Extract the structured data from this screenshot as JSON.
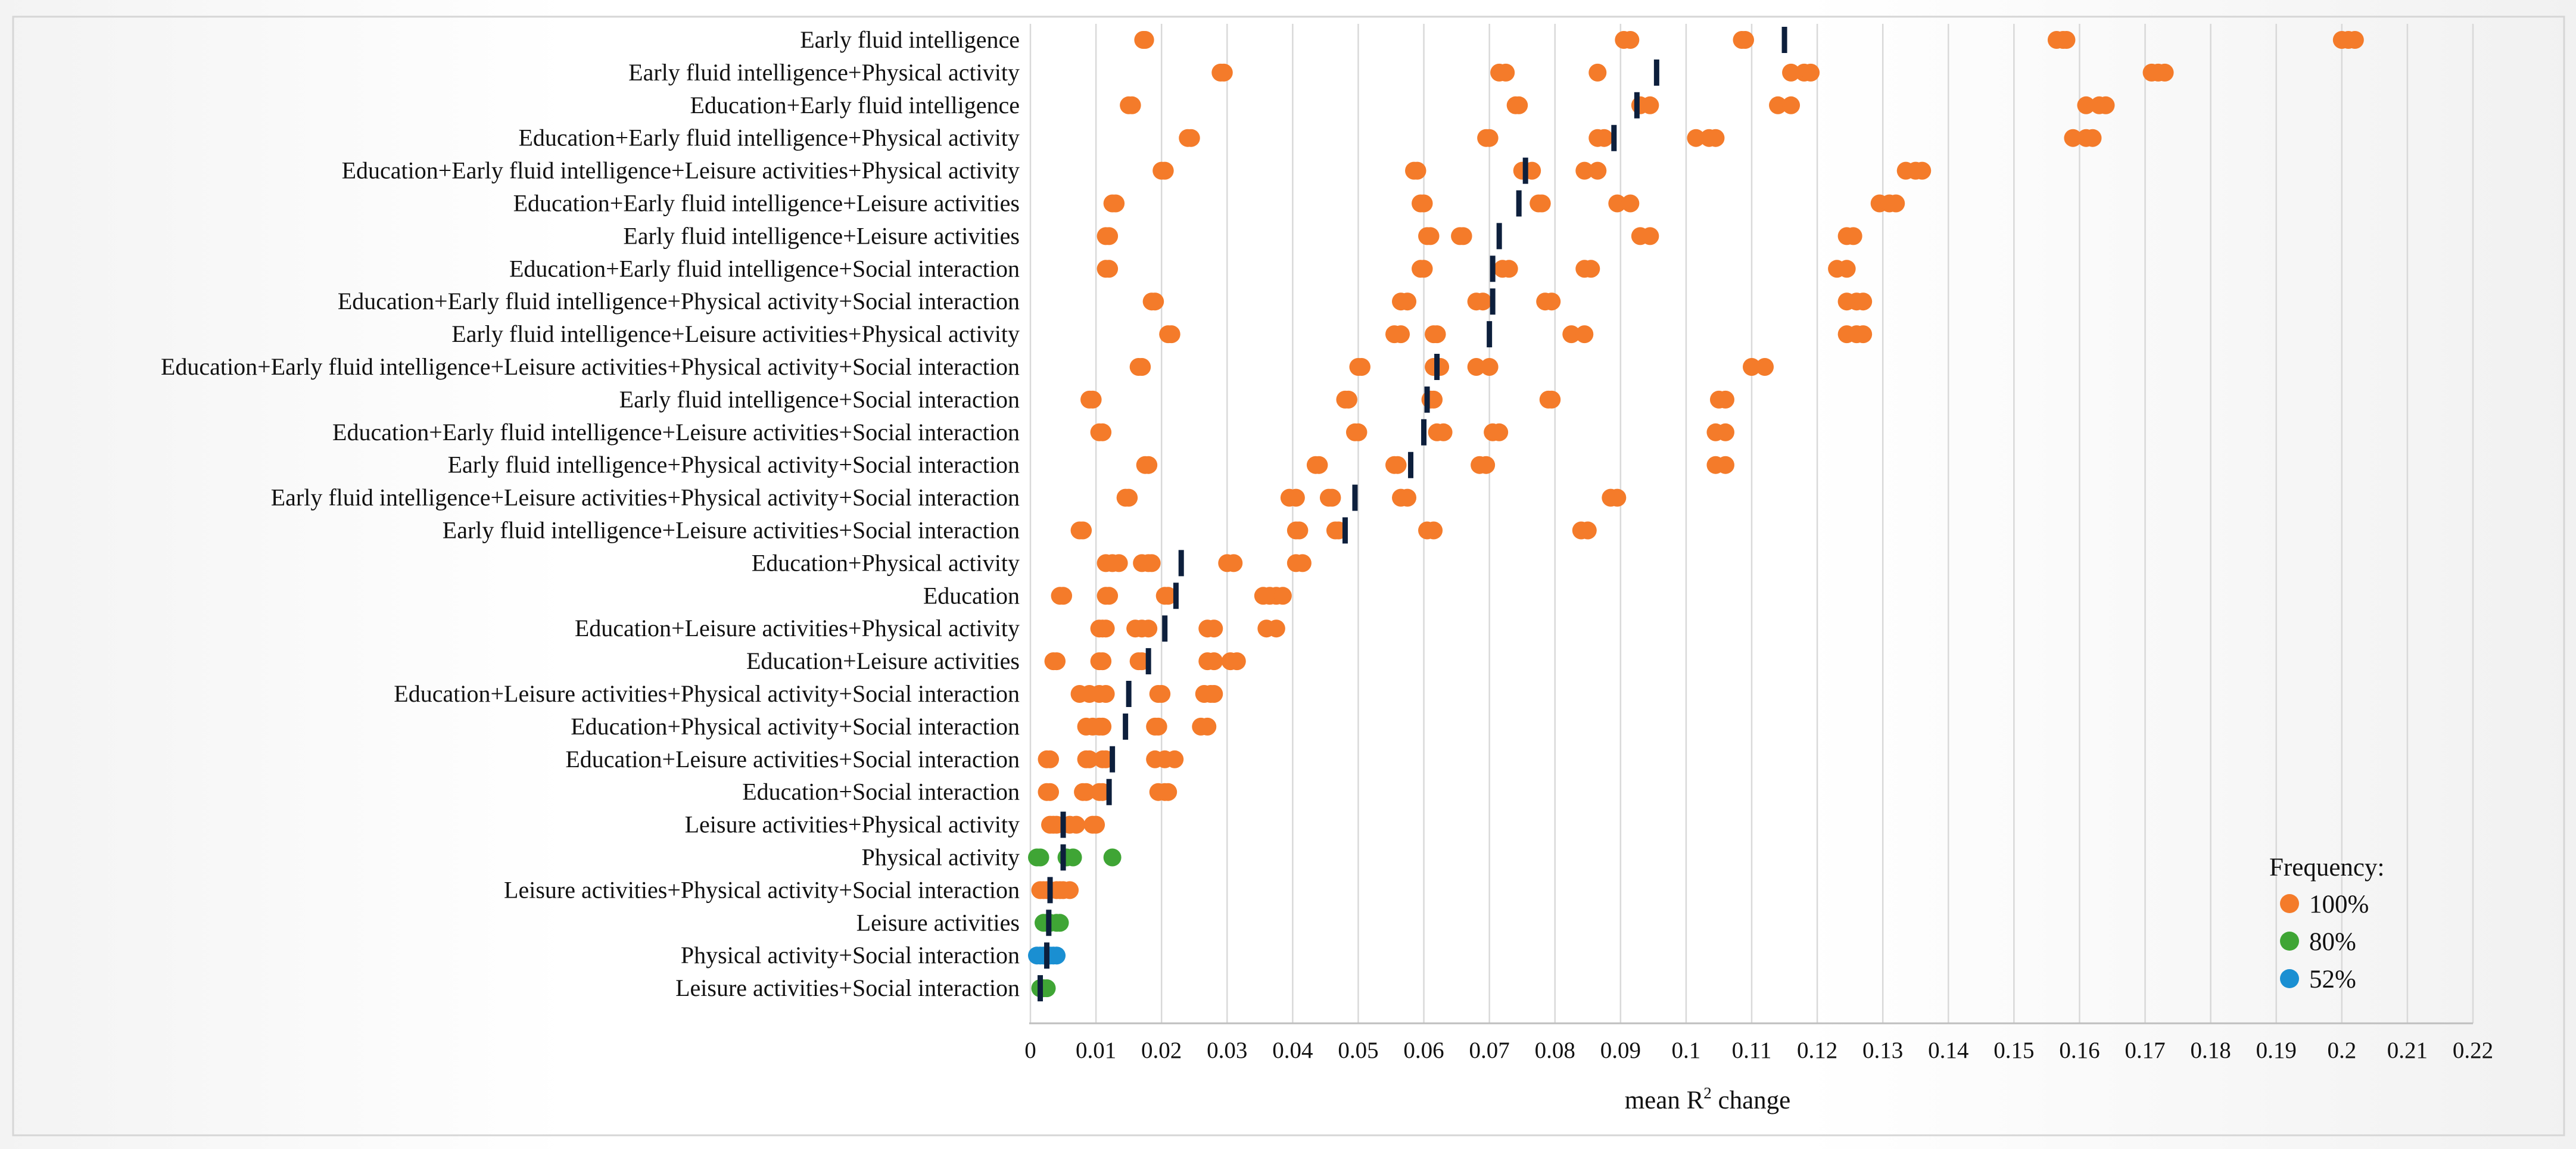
{
  "chart_data": {
    "type": "scatter",
    "title": "",
    "xlabel": "mean R",
    "xlabel_superscript": "2",
    "xlabel_suffix": " change",
    "ylabel": "",
    "xlim": [
      0,
      0.22
    ],
    "xticks": [
      0,
      0.01,
      0.02,
      0.03,
      0.04,
      0.05,
      0.06,
      0.07,
      0.08,
      0.09,
      0.1,
      0.11,
      0.12,
      0.13,
      0.14,
      0.15,
      0.16,
      0.17,
      0.18,
      0.19,
      0.2,
      0.21,
      0.22
    ],
    "xtick_labels": [
      "0",
      "0.01",
      "0.02",
      "0.03",
      "0.04",
      "0.05",
      "0.06",
      "0.07",
      "0.08",
      "0.09",
      "0.1",
      "0.11",
      "0.12",
      "0.13",
      "0.14",
      "0.15",
      "0.16",
      "0.17",
      "0.18",
      "0.19",
      "0.2",
      "0.21",
      "0.22"
    ],
    "grid": true,
    "colors": {
      "100%": "#f47b2a",
      "80%": "#3fa535",
      "52%": "#1a8fd2",
      "mean": "#0d1f3c"
    },
    "legend": {
      "title": "Frequency:",
      "position": "bottom-right",
      "entries": [
        {
          "label": "100%",
          "color": "#f47b2a"
        },
        {
          "label": "80%",
          "color": "#3fa535"
        },
        {
          "label": "52%",
          "color": "#1a8fd2"
        }
      ]
    },
    "rows": [
      {
        "label": "Early fluid intelligence",
        "frequency": "100%",
        "mean": 0.115,
        "points": [
          0.0172,
          0.0175,
          0.0905,
          0.0915,
          0.1085,
          0.109,
          0.1565,
          0.1575,
          0.158,
          0.2,
          0.201,
          0.202
        ]
      },
      {
        "label": "Early fluid intelligence+Physical activity",
        "frequency": "100%",
        "mean": 0.0955,
        "points": [
          0.029,
          0.0295,
          0.0715,
          0.0725,
          0.0865,
          0.116,
          0.118,
          0.119,
          0.171,
          0.172,
          0.173
        ]
      },
      {
        "label": "Education+Early fluid intelligence",
        "frequency": "100%",
        "mean": 0.0925,
        "points": [
          0.015,
          0.0155,
          0.074,
          0.0745,
          0.093,
          0.0945,
          0.114,
          0.116,
          0.161,
          0.163,
          0.164
        ]
      },
      {
        "label": "Education+Early fluid intelligence+Physical activity",
        "frequency": "100%",
        "mean": 0.089,
        "points": [
          0.024,
          0.0245,
          0.0695,
          0.07,
          0.0865,
          0.0875,
          0.1015,
          0.1035,
          0.1045,
          0.159,
          0.161,
          0.162
        ]
      },
      {
        "label": "Education+Early fluid intelligence+Leisure activities+Physical activity",
        "frequency": "100%",
        "mean": 0.0755,
        "points": [
          0.02,
          0.0205,
          0.0585,
          0.059,
          0.075,
          0.0765,
          0.0845,
          0.0865,
          0.1335,
          0.135,
          0.136
        ]
      },
      {
        "label": "Education+Early fluid intelligence+Leisure activities",
        "frequency": "100%",
        "mean": 0.0745,
        "points": [
          0.0125,
          0.013,
          0.0595,
          0.06,
          0.0775,
          0.078,
          0.0895,
          0.0915,
          0.1295,
          0.131,
          0.132
        ]
      },
      {
        "label": "Early fluid intelligence+Leisure activities",
        "frequency": "100%",
        "mean": 0.0715,
        "points": [
          0.0115,
          0.012,
          0.0605,
          0.061,
          0.0655,
          0.066,
          0.093,
          0.0945,
          0.1245,
          0.1255
        ]
      },
      {
        "label": "Education+Early fluid intelligence+Social interaction",
        "frequency": "100%",
        "mean": 0.0705,
        "points": [
          0.0115,
          0.012,
          0.0595,
          0.06,
          0.072,
          0.073,
          0.0845,
          0.0855,
          0.123,
          0.1245
        ]
      },
      {
        "label": "Education+Early fluid intelligence+Physical activity+Social interaction",
        "frequency": "100%",
        "mean": 0.0705,
        "points": [
          0.0185,
          0.019,
          0.0565,
          0.0575,
          0.068,
          0.069,
          0.0785,
          0.0795,
          0.1245,
          0.126,
          0.127
        ]
      },
      {
        "label": "Early fluid intelligence+Leisure activities+Physical activity",
        "frequency": "100%",
        "mean": 0.07,
        "points": [
          0.021,
          0.0215,
          0.0555,
          0.0565,
          0.0615,
          0.062,
          0.0825,
          0.0845,
          0.1245,
          0.126,
          0.127
        ]
      },
      {
        "label": "Education+Early fluid intelligence+Leisure activities+Physical activity+Social interaction",
        "frequency": "100%",
        "mean": 0.062,
        "points": [
          0.0165,
          0.017,
          0.05,
          0.0505,
          0.0615,
          0.0625,
          0.068,
          0.07,
          0.11,
          0.112
        ]
      },
      {
        "label": "Early fluid intelligence+Social interaction",
        "frequency": "100%",
        "mean": 0.0605,
        "points": [
          0.009,
          0.0095,
          0.048,
          0.0485,
          0.061,
          0.0615,
          0.079,
          0.0795,
          0.105,
          0.106
        ]
      },
      {
        "label": "Education+Early fluid intelligence+Leisure activities+Social interaction",
        "frequency": "100%",
        "mean": 0.06,
        "points": [
          0.0105,
          0.011,
          0.0495,
          0.05,
          0.062,
          0.063,
          0.0705,
          0.0715,
          0.1045,
          0.106
        ]
      },
      {
        "label": "Early fluid intelligence+Physical activity+Social interaction",
        "frequency": "100%",
        "mean": 0.058,
        "points": [
          0.0175,
          0.018,
          0.0435,
          0.044,
          0.0555,
          0.056,
          0.0685,
          0.0695,
          0.1045,
          0.106
        ]
      },
      {
        "label": "Early fluid intelligence+Leisure activities+Physical activity+Social interaction",
        "frequency": "100%",
        "mean": 0.0495,
        "points": [
          0.0145,
          0.015,
          0.0395,
          0.0405,
          0.0455,
          0.046,
          0.0565,
          0.0575,
          0.0885,
          0.0895
        ]
      },
      {
        "label": "Early fluid intelligence+Leisure activities+Social interaction",
        "frequency": "100%",
        "mean": 0.048,
        "points": [
          0.0075,
          0.008,
          0.0405,
          0.041,
          0.0465,
          0.047,
          0.0605,
          0.0615,
          0.084,
          0.085
        ]
      },
      {
        "label": "Education+Physical activity",
        "frequency": "100%",
        "mean": 0.023,
        "points": [
          0.0115,
          0.0125,
          0.0135,
          0.017,
          0.018,
          0.0185,
          0.03,
          0.031,
          0.0405,
          0.0415
        ]
      },
      {
        "label": "Education",
        "frequency": "100%",
        "mean": 0.0222,
        "points": [
          0.0045,
          0.005,
          0.0115,
          0.012,
          0.0205,
          0.021,
          0.0355,
          0.0365,
          0.0375,
          0.0385
        ]
      },
      {
        "label": "Education+Leisure activities+Physical activity",
        "frequency": "100%",
        "mean": 0.0205,
        "points": [
          0.0105,
          0.011,
          0.0115,
          0.016,
          0.017,
          0.018,
          0.027,
          0.028,
          0.036,
          0.0375
        ]
      },
      {
        "label": "Education+Leisure activities",
        "frequency": "100%",
        "mean": 0.018,
        "points": [
          0.0035,
          0.004,
          0.0105,
          0.011,
          0.0165,
          0.017,
          0.027,
          0.028,
          0.0305,
          0.0315
        ]
      },
      {
        "label": "Education+Leisure activities+Physical activity+Social interaction",
        "frequency": "100%",
        "mean": 0.015,
        "points": [
          0.0075,
          0.009,
          0.0105,
          0.0115,
          0.0195,
          0.02,
          0.0265,
          0.0275,
          0.028
        ]
      },
      {
        "label": "Education+Physical activity+Social interaction",
        "frequency": "100%",
        "mean": 0.0145,
        "points": [
          0.0085,
          0.0095,
          0.0105,
          0.011,
          0.019,
          0.0195,
          0.026,
          0.027
        ]
      },
      {
        "label": "Education+Leisure activities+Social interaction",
        "frequency": "100%",
        "mean": 0.0125,
        "points": [
          0.0025,
          0.003,
          0.0085,
          0.009,
          0.011,
          0.0115,
          0.019,
          0.0205,
          0.022
        ]
      },
      {
        "label": "Education+Social interaction",
        "frequency": "100%",
        "mean": 0.012,
        "points": [
          0.0025,
          0.003,
          0.008,
          0.0085,
          0.0105,
          0.011,
          0.0195,
          0.0205,
          0.021
        ]
      },
      {
        "label": "Leisure activities+Physical activity",
        "frequency": "100%",
        "mean": 0.005,
        "points": [
          0.003,
          0.0035,
          0.004,
          0.006,
          0.007,
          0.0095,
          0.01
        ]
      },
      {
        "label": "Physical activity",
        "frequency": "80%",
        "mean": 0.005,
        "points": [
          0.001,
          0.0015,
          0.0055,
          0.0065,
          0.0125
        ]
      },
      {
        "label": "Leisure activities+Physical activity+Social interaction",
        "frequency": "100%",
        "mean": 0.003,
        "points": [
          0.0015,
          0.002,
          0.0025,
          0.003,
          0.004,
          0.0045,
          0.005,
          0.006
        ]
      },
      {
        "label": "Leisure activities",
        "frequency": "80%",
        "mean": 0.0028,
        "points": [
          0.002,
          0.0025,
          0.003,
          0.004,
          0.0045
        ]
      },
      {
        "label": "Physical activity+Social interaction",
        "frequency": "52%",
        "mean": 0.0025,
        "points": [
          0.001,
          0.0015,
          0.002,
          0.003,
          0.0035,
          0.004
        ]
      },
      {
        "label": "Leisure activities+Social interaction",
        "frequency": "80%",
        "mean": 0.0015,
        "points": [
          0.0015,
          0.002,
          0.0025
        ]
      }
    ]
  }
}
